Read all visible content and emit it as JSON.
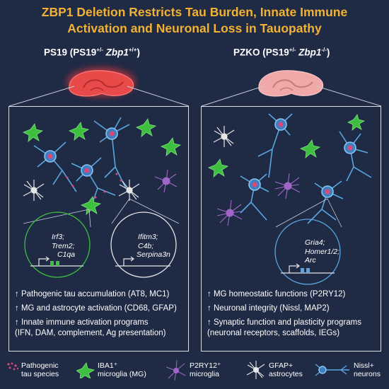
{
  "title": {
    "line1": "ZBP1 Deletion Restricts Tau Burden, Innate Immune",
    "line2": "Activation and Neuronal Loss in Tauopathy"
  },
  "left_panel": {
    "title_prefix": "PS19 (PS19",
    "title_sup1": "+/-",
    "title_gene": "Zbp1",
    "title_sup2": "+/+",
    "title_suffix": ")",
    "circle1": [
      "Irf3;",
      "Trem2;",
      "C1qa"
    ],
    "circle2": [
      "Ifitm3;",
      "C4b;",
      "Serpina3n"
    ],
    "bullets": [
      "↑ Pathogenic tau accumulation (AT8, MC1)",
      "↑ MG and astrocyte activation (CD68, GFAP)",
      "↑ Innate immune activation programs",
      "(IFN, DAM, complement, Ag presentation)"
    ]
  },
  "right_panel": {
    "title_prefix": "PZKO (PS19",
    "title_sup1": "+/-",
    "title_gene": "Zbp1",
    "title_sup2": "-/-",
    "title_suffix": ")",
    "circle1": [
      "Gria4;",
      "Homer1/2;",
      "Arc"
    ],
    "bullets": [
      "↑ MG homeostatic functions (P2RY12)",
      "↑ Neuronal integrity (Nissl, MAP2)",
      "↑ Synaptic function and plasticity programs",
      "(neuronal receptors, scaffolds, IEGs)"
    ]
  },
  "legend": {
    "tau": [
      "Pathogenic",
      "tau species"
    ],
    "iba1": [
      "IBA1⁺",
      "microglia (MG)"
    ],
    "p2ry12": [
      "P2RY12⁺",
      "microglia"
    ],
    "gfap": [
      "GFAP+",
      "astrocytes"
    ],
    "nissl": [
      "Nissl+",
      "neurons"
    ]
  },
  "colors": {
    "background": "#1f2a45",
    "title": "#f2b234",
    "iba1_microglia": "#3fbf3f",
    "p2ry12_microglia": "#a067c8",
    "astrocyte": "#e6e6e6",
    "neuron": "#5aa6e0",
    "tau": "#d94a7a",
    "hippocampus_diseased": "#e84a4a",
    "hippocampus_healthy": "#f0a8a8"
  }
}
